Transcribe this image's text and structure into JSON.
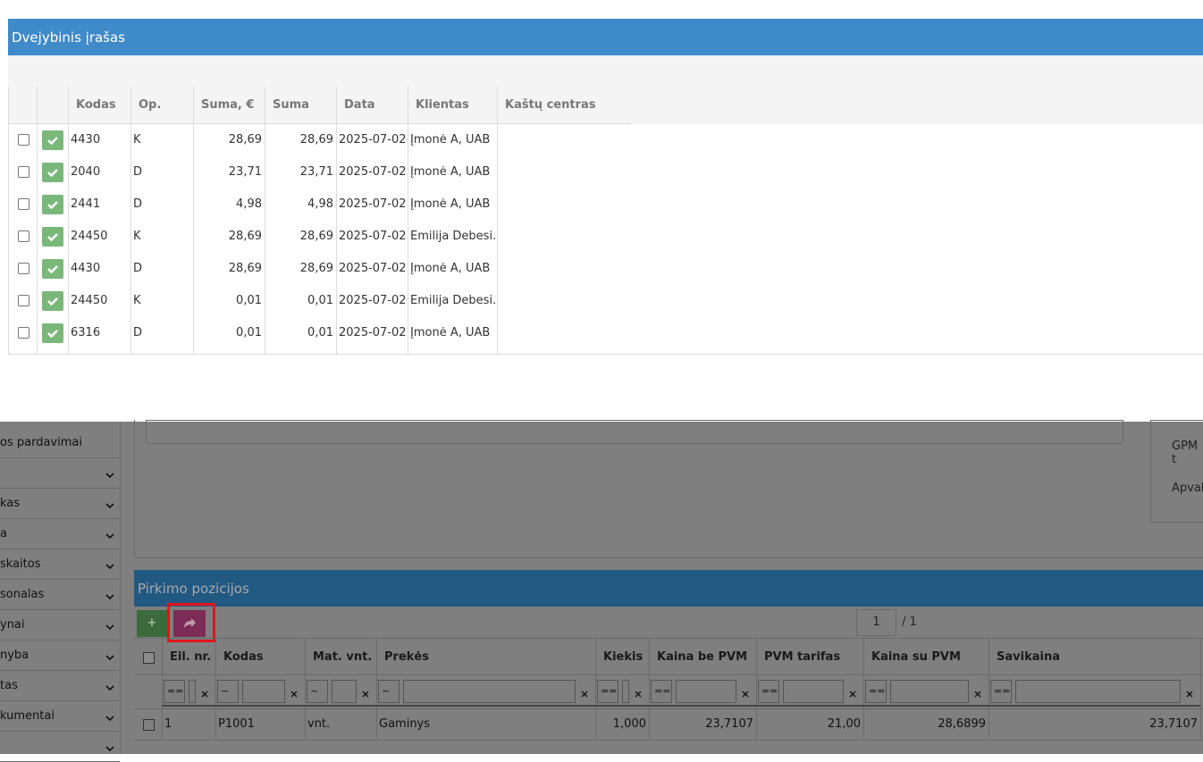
{
  "modal": {
    "title": "Dvejybinis įrašas",
    "table": {
      "columns": [
        "Kodas",
        "Op.",
        "Suma, €",
        "Suma",
        "Data",
        "Klientas",
        "Kaštų centras"
      ],
      "rows": [
        [
          "4430",
          "K",
          "28,69",
          "28,69",
          "2025-07-02",
          "Įmonė A, UAB"
        ],
        [
          "2040",
          "D",
          "23,71",
          "23,71",
          "2025-07-02",
          "Įmonė A, UAB"
        ],
        [
          "2441",
          "D",
          "4,98",
          "4,98",
          "2025-07-02",
          "Įmonė A, UAB"
        ],
        [
          "24450",
          "K",
          "28,69",
          "28,69",
          "2025-07-02",
          "Emilija Debesi..."
        ],
        [
          "4430",
          "D",
          "28,69",
          "28,69",
          "2025-07-02",
          "Įmonė A, UAB"
        ],
        [
          "24450",
          "K",
          "0,01",
          "0,01",
          "2025-07-02",
          "Emilija Debesi..."
        ],
        [
          "6316",
          "D",
          "0,01",
          "0,01",
          "2025-07-02",
          "Įmonė A, UAB"
        ]
      ],
      "row_backgrounds": [
        "#ffffff",
        "#ffffff",
        "#ffffff",
        "#fbab6f",
        "#fbab6f",
        "#d5ecfa",
        "#d5ecfa"
      ]
    }
  },
  "background": {
    "sidebar": [
      "os pardavimai",
      "kas",
      "a",
      "skaitos",
      "sonalas",
      "ynai",
      "nyba",
      "tas",
      "kumentai"
    ],
    "summary": [
      "GPM t",
      "Apvali"
    ],
    "section": {
      "title": "Pirkimo pozicijos",
      "page": "1",
      "pages": "/ 1",
      "columns": [
        "Eil. nr.",
        "Kodas",
        "Mat. vnt.",
        "Prekės",
        "Kiekis",
        "Kaina be PVM",
        "PVM tarifas",
        "Kaina su PVM",
        "Savikaina"
      ],
      "filters": [
        "==",
        "~",
        "~",
        "~",
        "==",
        "==",
        "==",
        "==",
        "=="
      ],
      "rows": [
        [
          "1",
          "P1001",
          "vnt.",
          "Gaminys",
          "1,000",
          "23,7107",
          "21,00",
          "28,6899",
          "23,7107"
        ]
      ]
    }
  }
}
